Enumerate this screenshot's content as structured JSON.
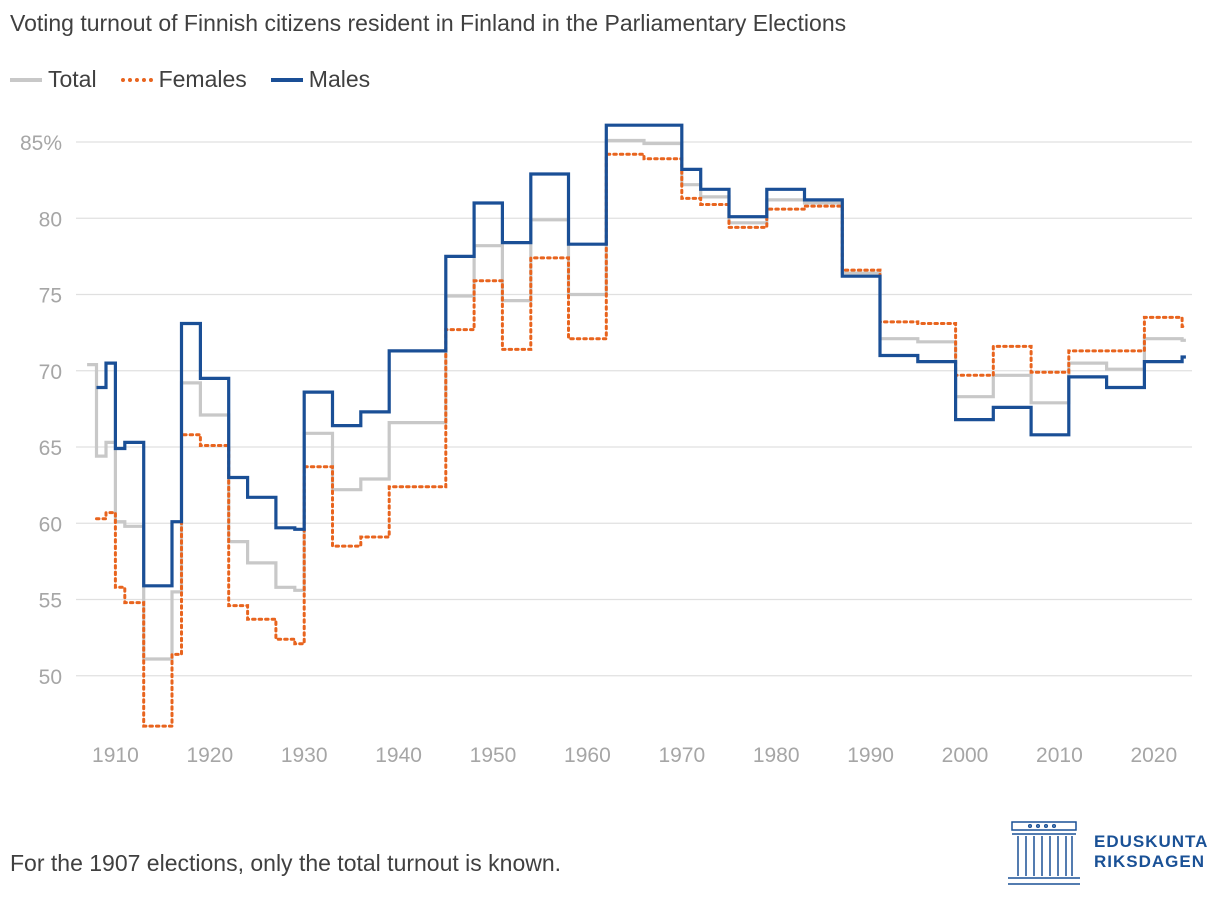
{
  "chart_data": {
    "type": "line",
    "step": true,
    "title": "Voting turnout of Finnish citizens resident in Finland in the Parliamentary Elections",
    "xlabel": "",
    "ylabel": "",
    "xlim": [
      1906.5,
      2024
    ],
    "ylim": [
      46,
      87
    ],
    "x_ticks": [
      1910,
      1920,
      1930,
      1940,
      1950,
      1960,
      1970,
      1980,
      1990,
      2000,
      2010,
      2020
    ],
    "y_ticks": [
      50,
      55,
      60,
      65,
      70,
      75,
      80,
      85
    ],
    "y_tick_labels": [
      "50",
      "55",
      "60",
      "65",
      "70",
      "75",
      "80",
      "85%"
    ],
    "grid": true,
    "legend_position": "top-left",
    "series": [
      {
        "name": "Total",
        "color": "#c8c8c8",
        "dash": "solid",
        "points": [
          [
            1907,
            70.4
          ],
          [
            1908,
            64.4
          ],
          [
            1909,
            65.3
          ],
          [
            1910,
            60.1
          ],
          [
            1911,
            59.8
          ],
          [
            1913,
            51.1
          ],
          [
            1916,
            55.5
          ],
          [
            1917,
            69.2
          ],
          [
            1919,
            67.1
          ],
          [
            1922,
            58.8
          ],
          [
            1924,
            57.4
          ],
          [
            1927,
            55.8
          ],
          [
            1929,
            55.6
          ],
          [
            1930,
            65.9
          ],
          [
            1933,
            62.2
          ],
          [
            1936,
            62.9
          ],
          [
            1939,
            66.6
          ],
          [
            1945,
            74.9
          ],
          [
            1948,
            78.2
          ],
          [
            1951,
            74.6
          ],
          [
            1954,
            79.9
          ],
          [
            1958,
            75.0
          ],
          [
            1962,
            85.1
          ],
          [
            1966,
            84.9
          ],
          [
            1970,
            82.2
          ],
          [
            1972,
            81.4
          ],
          [
            1975,
            79.7
          ],
          [
            1979,
            81.2
          ],
          [
            1983,
            81.0
          ],
          [
            1987,
            76.4
          ],
          [
            1991,
            72.1
          ],
          [
            1995,
            71.9
          ],
          [
            1999,
            68.3
          ],
          [
            2003,
            69.7
          ],
          [
            2007,
            67.9
          ],
          [
            2011,
            70.5
          ],
          [
            2015,
            70.1
          ],
          [
            2019,
            72.1
          ],
          [
            2023,
            72.0
          ]
        ]
      },
      {
        "name": "Females",
        "color": "#e8641e",
        "dash": "dotted",
        "points": [
          [
            1908,
            60.3
          ],
          [
            1909,
            60.7
          ],
          [
            1910,
            55.8
          ],
          [
            1911,
            54.8
          ],
          [
            1913,
            46.7
          ],
          [
            1916,
            51.4
          ],
          [
            1917,
            65.8
          ],
          [
            1919,
            65.1
          ],
          [
            1922,
            54.6
          ],
          [
            1924,
            53.7
          ],
          [
            1927,
            52.4
          ],
          [
            1929,
            52.1
          ],
          [
            1930,
            63.7
          ],
          [
            1933,
            58.5
          ],
          [
            1936,
            59.1
          ],
          [
            1939,
            62.4
          ],
          [
            1945,
            72.7
          ],
          [
            1948,
            75.9
          ],
          [
            1951,
            71.4
          ],
          [
            1954,
            77.4
          ],
          [
            1958,
            72.1
          ],
          [
            1962,
            84.2
          ],
          [
            1966,
            83.9
          ],
          [
            1970,
            81.3
          ],
          [
            1972,
            80.9
          ],
          [
            1975,
            79.4
          ],
          [
            1979,
            80.6
          ],
          [
            1983,
            80.8
          ],
          [
            1987,
            76.6
          ],
          [
            1991,
            73.2
          ],
          [
            1995,
            73.1
          ],
          [
            1999,
            69.7
          ],
          [
            2003,
            71.6
          ],
          [
            2007,
            69.9
          ],
          [
            2011,
            71.3
          ],
          [
            2015,
            71.3
          ],
          [
            2019,
            73.5
          ],
          [
            2023,
            72.9
          ]
        ]
      },
      {
        "name": "Males",
        "color": "#1a4f96",
        "dash": "solid",
        "points": [
          [
            1908,
            68.9
          ],
          [
            1909,
            70.5
          ],
          [
            1910,
            64.9
          ],
          [
            1911,
            65.3
          ],
          [
            1913,
            55.9
          ],
          [
            1916,
            60.1
          ],
          [
            1917,
            73.1
          ],
          [
            1919,
            69.5
          ],
          [
            1922,
            63.0
          ],
          [
            1924,
            61.7
          ],
          [
            1927,
            59.7
          ],
          [
            1929,
            59.6
          ],
          [
            1930,
            68.6
          ],
          [
            1933,
            66.4
          ],
          [
            1936,
            67.3
          ],
          [
            1939,
            71.3
          ],
          [
            1945,
            77.5
          ],
          [
            1948,
            81.0
          ],
          [
            1951,
            78.4
          ],
          [
            1954,
            82.9
          ],
          [
            1958,
            78.3
          ],
          [
            1962,
            86.1
          ],
          [
            1966,
            86.1
          ],
          [
            1970,
            83.2
          ],
          [
            1972,
            81.9
          ],
          [
            1975,
            80.1
          ],
          [
            1979,
            81.9
          ],
          [
            1983,
            81.2
          ],
          [
            1987,
            76.2
          ],
          [
            1991,
            71.0
          ],
          [
            1995,
            70.6
          ],
          [
            1999,
            66.8
          ],
          [
            2003,
            67.6
          ],
          [
            2007,
            65.8
          ],
          [
            2011,
            69.6
          ],
          [
            2015,
            68.9
          ],
          [
            2019,
            70.6
          ],
          [
            2023,
            70.9
          ]
        ]
      }
    ]
  },
  "note": "For the 1907 elections, only the total turnout is known.",
  "logo": {
    "line1": "EDUSKUNTA",
    "line2": "RIKSDAGEN"
  }
}
